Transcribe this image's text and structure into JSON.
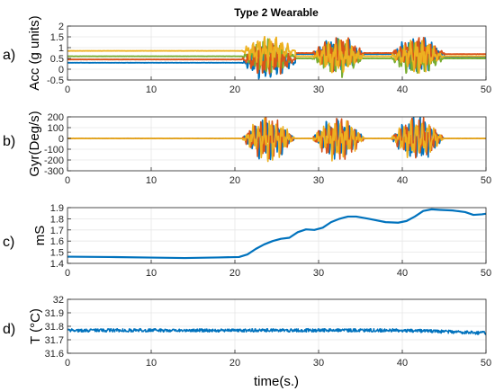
{
  "figure": {
    "title": "Type 2 Wearable",
    "xlabel": "time(s.)"
  },
  "chart_data": [
    {
      "panel_label": "a)",
      "type": "line",
      "ylabel": "Acc (g units)",
      "xlim": [
        0,
        50
      ],
      "ylim": [
        -0.5,
        2
      ],
      "xticks": [
        "0",
        "10",
        "20",
        "30",
        "40",
        "50"
      ],
      "yticks": [
        "-0.5",
        "0",
        "0.5",
        "1",
        "1.5",
        "2"
      ],
      "grid": true,
      "colors": [
        "#0072BD",
        "#D95319",
        "#EDB120",
        "#77AC30"
      ],
      "baselines": [
        0.3,
        0.45,
        0.85,
        0.6
      ],
      "activity_windows": [
        [
          20.8,
          27.2
        ],
        [
          29.2,
          35.5
        ],
        [
          38.6,
          45.0
        ]
      ],
      "activity_amplitude": 0.6,
      "post_activity_levels": [
        0.7,
        0.75,
        0.6,
        0.5
      ],
      "final_levels": [
        0.55,
        0.7,
        0.6,
        0.5
      ]
    },
    {
      "panel_label": "b)",
      "type": "line",
      "ylabel": "Gyr(Deg/s)",
      "xlim": [
        0,
        50
      ],
      "ylim": [
        -300,
        200
      ],
      "xticks": [
        "0",
        "10",
        "20",
        "30",
        "40",
        "50"
      ],
      "yticks": [
        "-300",
        "-200",
        "-100",
        "0",
        "100",
        "200"
      ],
      "grid": true,
      "colors": [
        "#0072BD",
        "#D95319",
        "#EDB120"
      ],
      "baselines": [
        0,
        0,
        0
      ],
      "activity_windows": [
        [
          20.8,
          27.2
        ],
        [
          29.2,
          35.5
        ],
        [
          38.6,
          45.0
        ]
      ],
      "activity_amplitude": 150
    },
    {
      "panel_label": "c)",
      "type": "line",
      "ylabel": "mS",
      "xlim": [
        0,
        50
      ],
      "ylim": [
        1.4,
        1.9
      ],
      "xticks": [
        "0",
        "10",
        "20",
        "30",
        "40",
        "50"
      ],
      "yticks": [
        "1.4",
        "1.5",
        "1.6",
        "1.7",
        "1.8",
        "1.9"
      ],
      "grid": true,
      "colors": [
        "#0072BD"
      ],
      "x": [
        0,
        5,
        10,
        14,
        18,
        20.5,
        21.5,
        22.5,
        23.5,
        24.5,
        25.5,
        26.5,
        27.5,
        28.5,
        29.5,
        30.5,
        31.5,
        32.5,
        33.5,
        34.5,
        36,
        38,
        39.5,
        40.5,
        41.5,
        42.5,
        43.5,
        44.5,
        46,
        47.5,
        48.5,
        49.5,
        50
      ],
      "values": [
        1.46,
        1.457,
        1.452,
        1.448,
        1.453,
        1.457,
        1.48,
        1.53,
        1.57,
        1.6,
        1.62,
        1.63,
        1.68,
        1.705,
        1.7,
        1.72,
        1.77,
        1.8,
        1.82,
        1.82,
        1.8,
        1.77,
        1.765,
        1.78,
        1.82,
        1.87,
        1.885,
        1.88,
        1.875,
        1.86,
        1.835,
        1.84,
        1.845
      ]
    },
    {
      "panel_label": "d)",
      "type": "line",
      "ylabel": "T (°C)",
      "xlim": [
        0,
        50
      ],
      "ylim": [
        31.6,
        32
      ],
      "xticks": [
        "0",
        "10",
        "20",
        "30",
        "40",
        "50"
      ],
      "yticks": [
        "31.6",
        "31.7",
        "31.8",
        "31.9",
        "32"
      ],
      "grid": true,
      "colors": [
        "#0072BD"
      ],
      "level": 31.77,
      "final_level": 31.75,
      "noise": 0.012
    }
  ]
}
